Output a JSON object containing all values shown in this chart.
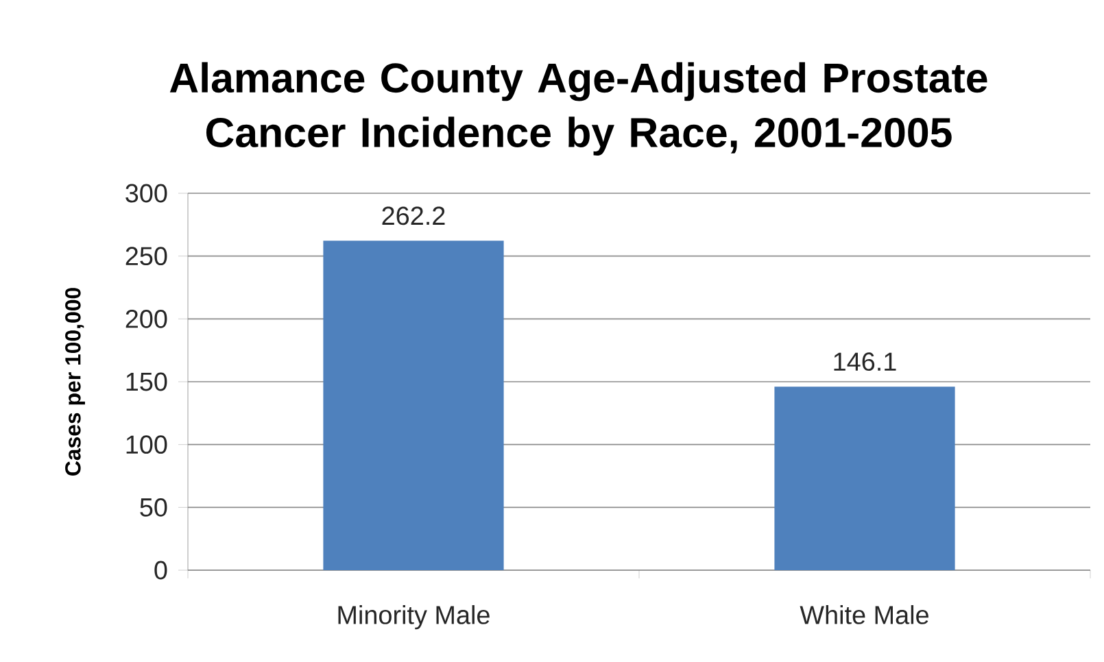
{
  "chart_data": {
    "type": "bar",
    "title": "Alamance County Age-Adjusted Prostate Cancer Incidence by Race, 2001-2005",
    "ylabel": "Cases per 100,000",
    "categories": [
      "Minority Male",
      "White Male"
    ],
    "values": [
      262.2,
      146.1
    ],
    "color": "#4f81bd",
    "ylim": [
      0,
      300
    ],
    "yticks": [
      0,
      50,
      100,
      150,
      200,
      250,
      300
    ],
    "grid": "y",
    "data_labels": true
  }
}
